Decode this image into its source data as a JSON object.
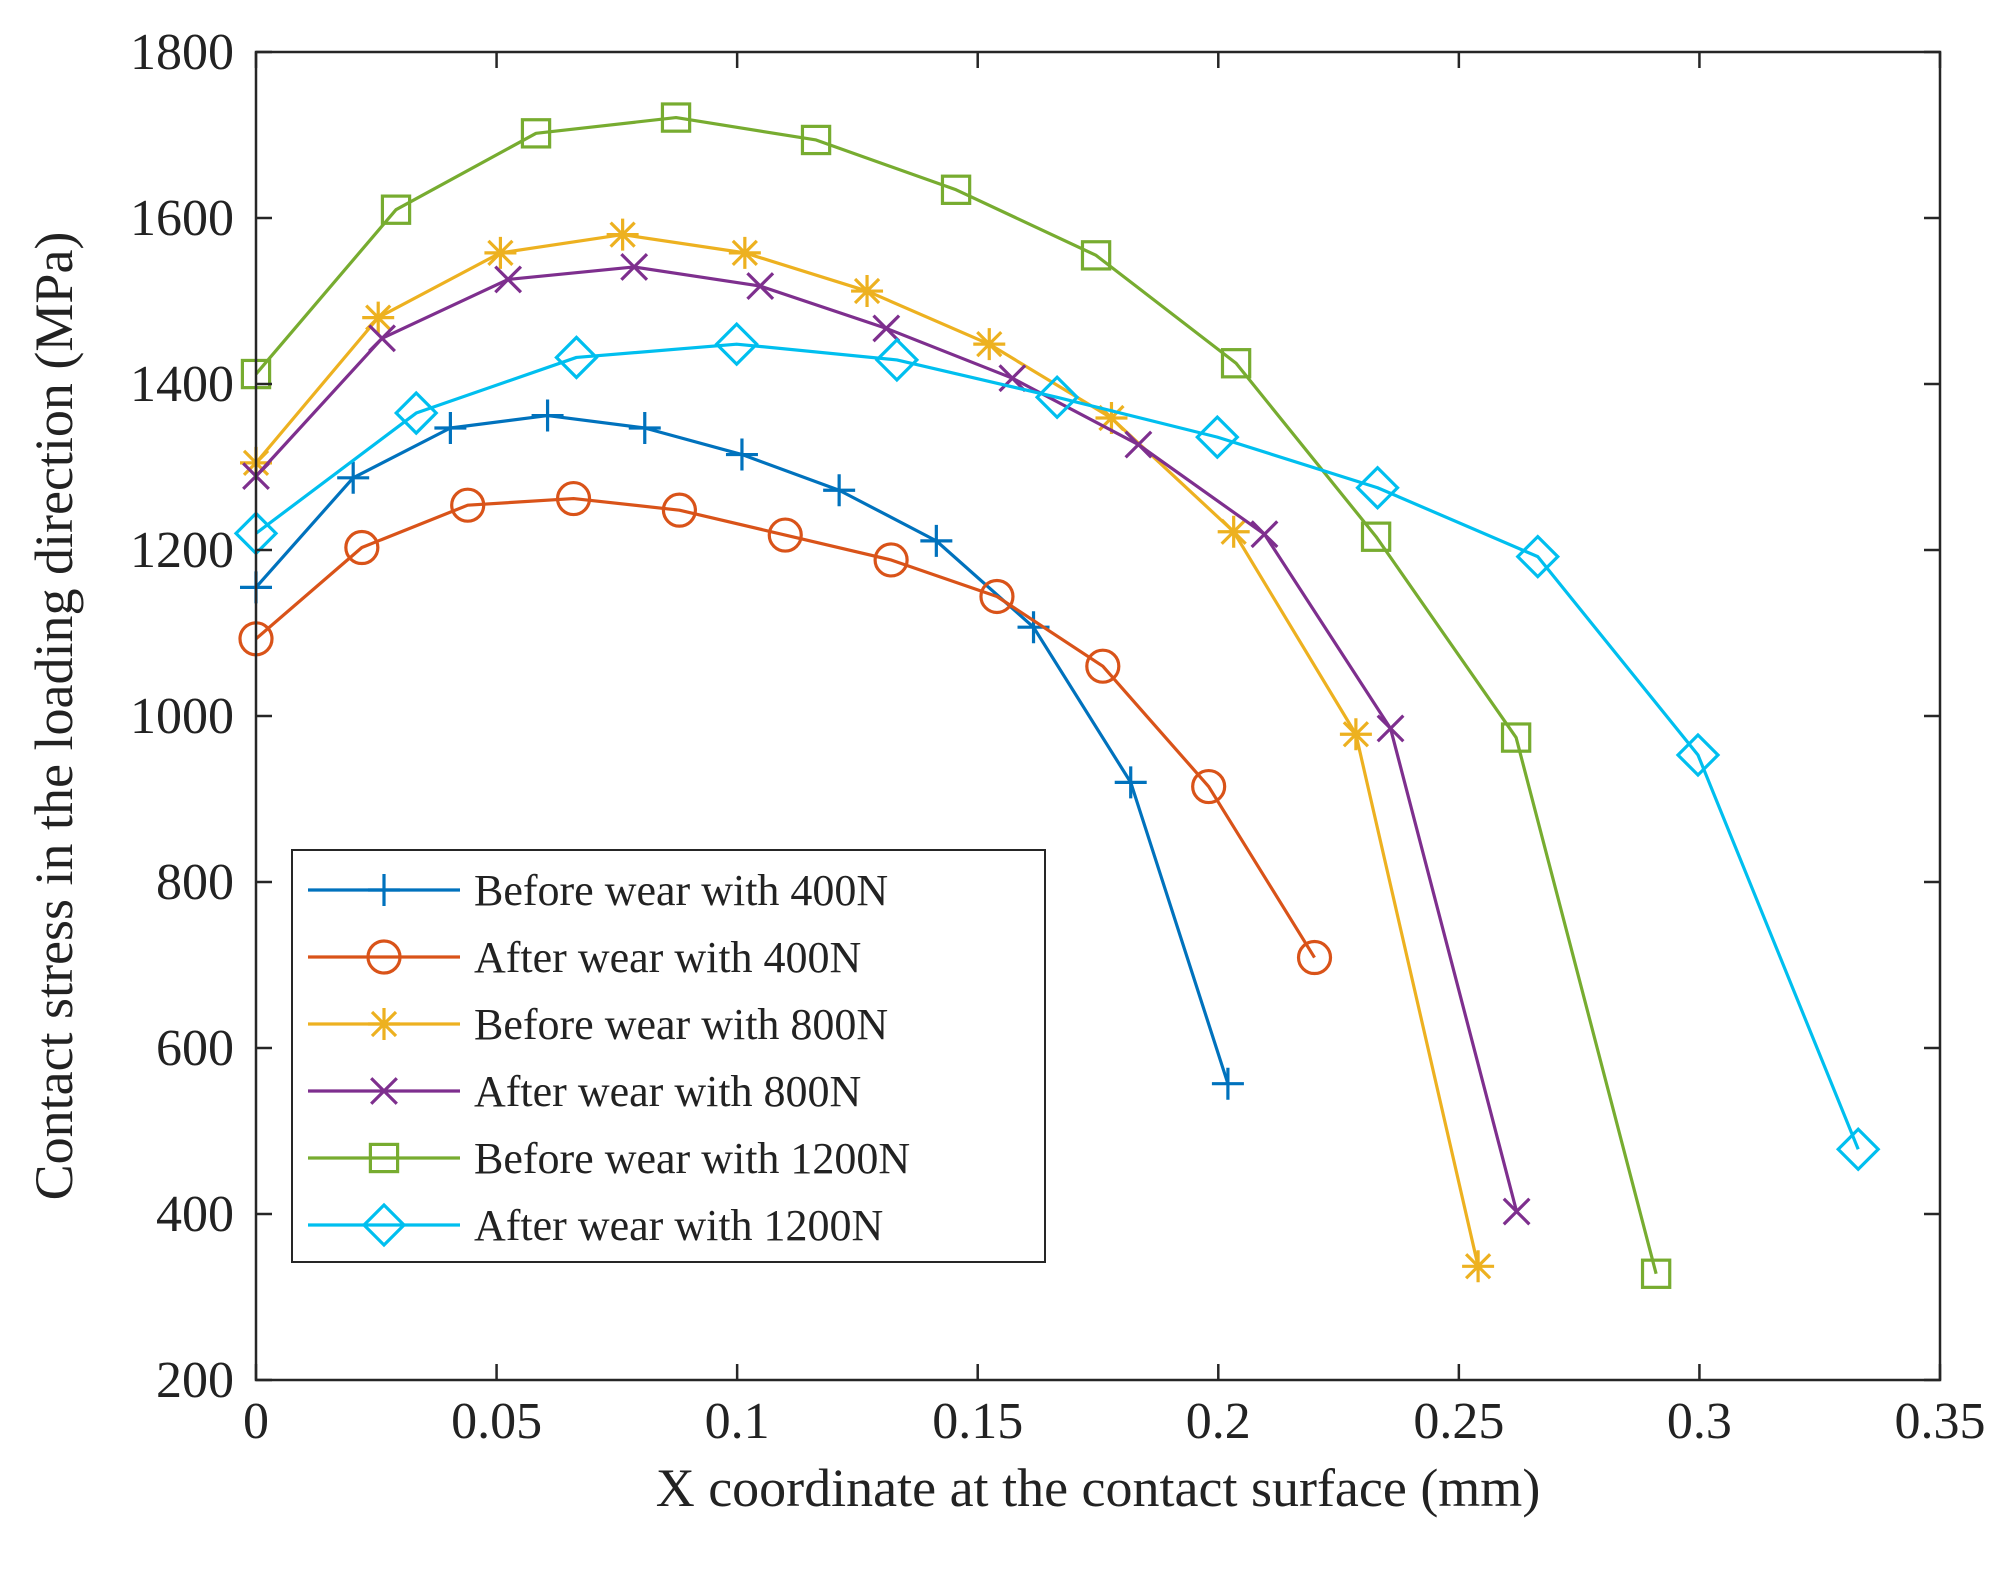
{
  "chart_data": {
    "type": "line",
    "title": "",
    "xlabel": "X coordinate at the contact surface (mm)",
    "ylabel": "Contact stress in the loading direction (MPa)",
    "xlim": [
      0,
      0.35
    ],
    "ylim": [
      200,
      1800
    ],
    "xticks": [
      0,
      0.05,
      0.1,
      0.15,
      0.2,
      0.25,
      0.3,
      0.35
    ],
    "xtick_labels": [
      "0",
      "0.05",
      "0.1",
      "0.15",
      "0.2",
      "0.25",
      "0.3",
      "0.35"
    ],
    "yticks": [
      200,
      400,
      600,
      800,
      1000,
      1200,
      1400,
      1600,
      1800
    ],
    "ytick_labels": [
      "200",
      "400",
      "600",
      "800",
      "1000",
      "1200",
      "1400",
      "1600",
      "1800"
    ],
    "grid": false,
    "legend_position": "bottom-left",
    "series": [
      {
        "name": "Before wear with 400N",
        "color": "#0072BD",
        "marker": "plus",
        "x": [
          0,
          0.0202,
          0.0404,
          0.0606,
          0.0808,
          0.101,
          0.1212,
          0.1414,
          0.1616,
          0.1818,
          0.202
        ],
        "y": [
          1155,
          1287,
          1347,
          1362,
          1347,
          1315,
          1272,
          1211,
          1107,
          920,
          557
        ]
      },
      {
        "name": "After wear with 400N",
        "color": "#D95319",
        "marker": "circle",
        "x": [
          0,
          0.022,
          0.044,
          0.066,
          0.088,
          0.11,
          0.132,
          0.154,
          0.176,
          0.198,
          0.22
        ],
        "y": [
          1093,
          1203,
          1254,
          1262,
          1248,
          1218,
          1188,
          1144,
          1060,
          915,
          709
        ]
      },
      {
        "name": "Before wear with 800N",
        "color": "#EDB120",
        "marker": "asterisk",
        "x": [
          0,
          0.0254,
          0.0508,
          0.0762,
          0.1016,
          0.127,
          0.1524,
          0.1778,
          0.2032,
          0.2286,
          0.254
        ],
        "y": [
          1305,
          1480,
          1558,
          1580,
          1558,
          1512,
          1448,
          1359,
          1222,
          978,
          337
        ]
      },
      {
        "name": "After wear with 800N",
        "color": "#7E2F8E",
        "marker": "cross",
        "x": [
          0,
          0.0262,
          0.0524,
          0.0786,
          0.1048,
          0.131,
          0.1572,
          0.1834,
          0.2096,
          0.2358,
          0.262
        ],
        "y": [
          1289,
          1455,
          1526,
          1541,
          1518,
          1467,
          1407,
          1327,
          1219,
          985,
          403
        ]
      },
      {
        "name": "Before wear with 1200N",
        "color": "#77AC30",
        "marker": "square",
        "x": [
          0,
          0.0291,
          0.0582,
          0.0873,
          0.1164,
          0.1455,
          0.1746,
          0.2037,
          0.2328,
          0.2619,
          0.291
        ],
        "y": [
          1412,
          1610,
          1702,
          1721,
          1694,
          1634,
          1555,
          1425,
          1216,
          974,
          328
        ]
      },
      {
        "name": "After wear with 1200N",
        "color": "#00BFEF",
        "marker": "diamond",
        "x": [
          0,
          0.0333,
          0.0666,
          0.0999,
          0.1332,
          0.1665,
          0.1998,
          0.2331,
          0.2664,
          0.2997,
          0.333
        ],
        "y": [
          1220,
          1365,
          1432,
          1448,
          1429,
          1384,
          1336,
          1275,
          1192,
          953,
          478
        ]
      }
    ]
  }
}
